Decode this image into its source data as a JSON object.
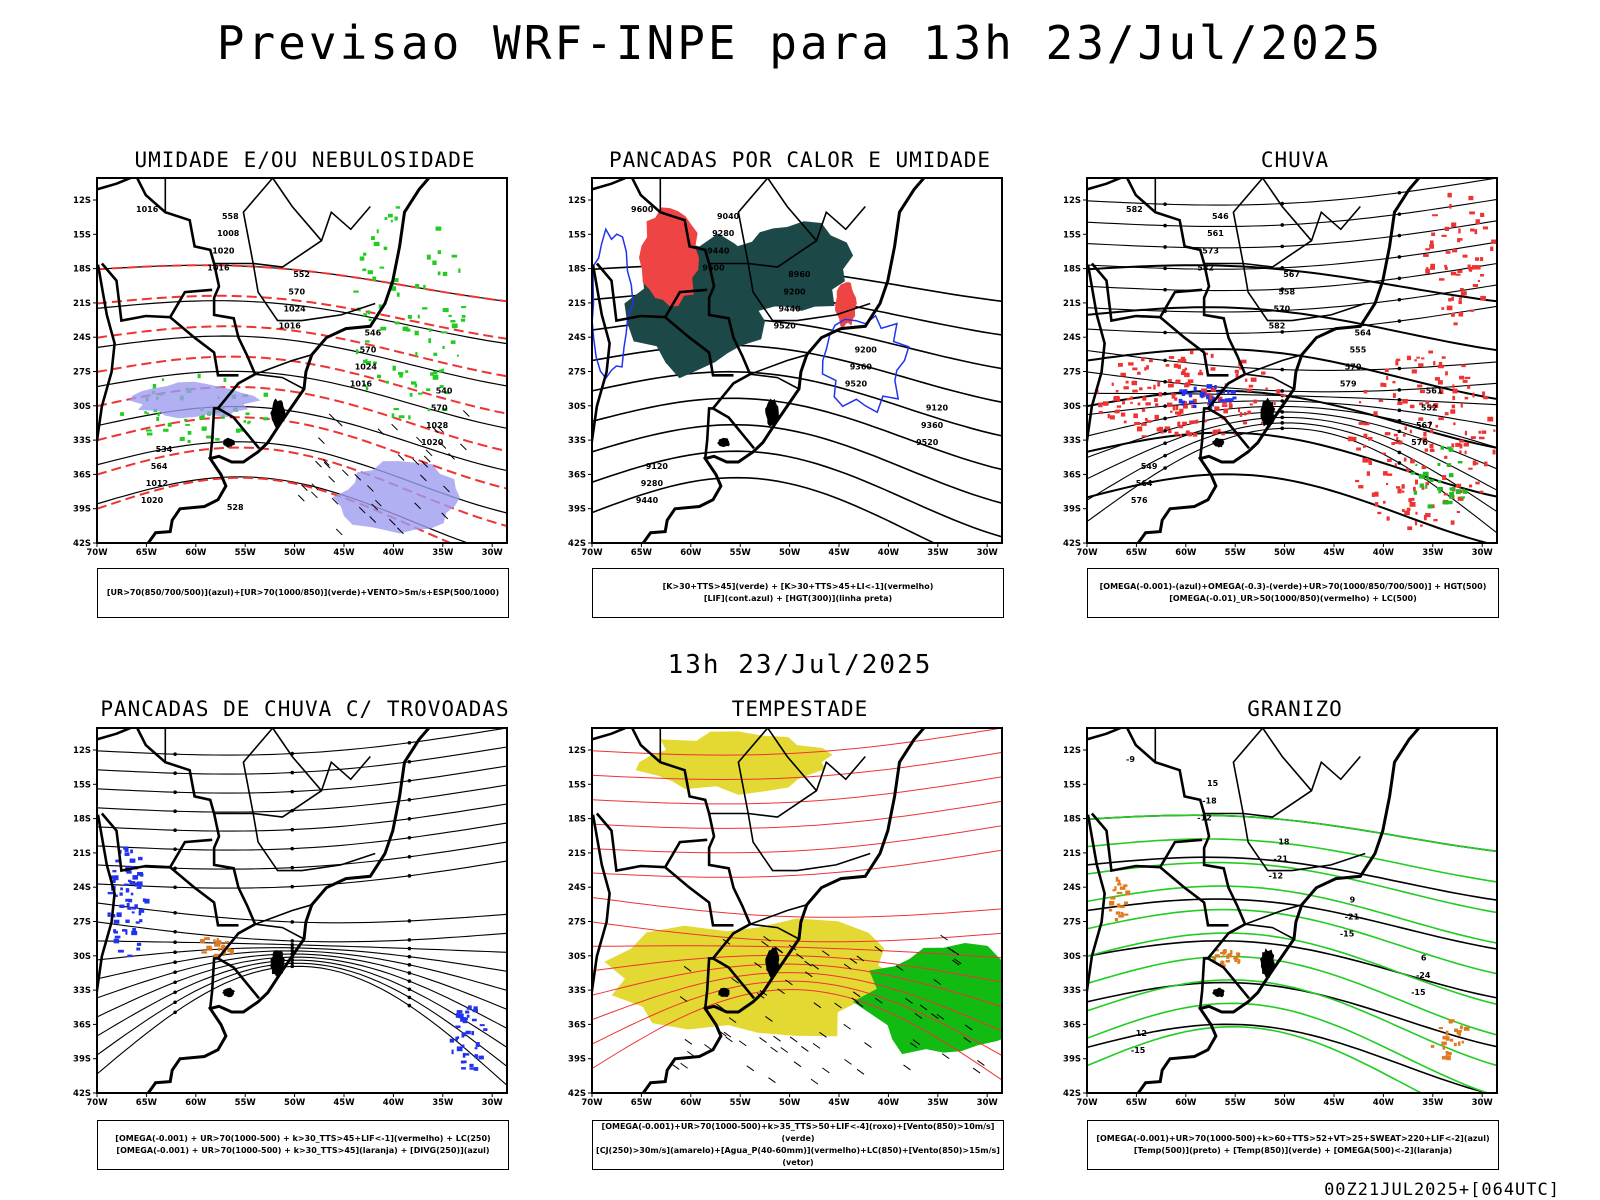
{
  "header": {
    "title": "Previsao WRF-INPE  para 13h 23/Jul/2025",
    "subtitle": "13h 23/Jul/2025",
    "run_info": "00Z21JUL2025+[064UTC]"
  },
  "axes": {
    "lat_labels": [
      "12S",
      "15S",
      "18S",
      "21S",
      "24S",
      "27S",
      "30S",
      "33S",
      "36S",
      "39S",
      "42S"
    ],
    "lon_labels": [
      "70W",
      "65W",
      "60W",
      "55W",
      "50W",
      "45W",
      "40W",
      "35W",
      "30W"
    ]
  },
  "panels": [
    {
      "id": "umidade",
      "title": "UMIDADE E/OU NEBULOSIDADE",
      "legend": [
        "[UR>70(850/700/500)](azul)+[UR>70(1000/850)](verde)+VENTO>5m/s+ESP(500/1000)"
      ],
      "contour_labels": [
        "1016",
        "1016",
        "1016",
        "1016",
        "1020",
        "1020",
        "1020",
        "1024",
        "1024",
        "1028",
        "1012",
        "1008",
        "570",
        "570",
        "570",
        "564",
        "558",
        "552",
        "546",
        "540",
        "534",
        "528"
      ]
    },
    {
      "id": "calor",
      "title": "PANCADAS POR CALOR E UMIDADE",
      "legend": [
        "[K>30+TTS>45](verde) + [K>30+TTS>45+LI<-1](vermelho)",
        "[LIF](cont.azul) + [HGT(300)](linha preta)"
      ],
      "contour_labels": [
        "9600",
        "9600",
        "9520",
        "9520",
        "9520",
        "9440",
        "9440",
        "9440",
        "9360",
        "9360",
        "9280",
        "9280",
        "9200",
        "9200",
        "9120",
        "9120",
        "9040",
        "8960"
      ]
    },
    {
      "id": "chuva",
      "title": "CHUVA",
      "legend": [
        "[OMEGA(-0.001)-(azul)+OMEGA(-0.3)-(verde)+UR>70(1000/850/700/500)] + HGT(500)",
        "[OMEGA(-0.01)_UR>50(1000/850)(vermelho) + LC(500)"
      ],
      "contour_labels": [
        "582",
        "582",
        "582",
        "579",
        "576",
        "576",
        "573",
        "570",
        "570",
        "567",
        "564",
        "561",
        "558",
        "555",
        "552",
        "549",
        "546",
        "567",
        "564",
        "561"
      ]
    },
    {
      "id": "trovoadas",
      "title": "PANCADAS DE CHUVA C/ TROVOADAS",
      "legend": [
        "[OMEGA(-0.001) + UR>70(1000-500) + k>30_TTS>45+LIF<-1](vermelho) + LC(250)",
        "[OMEGA(-0.001) + UR>70(1000-500) + k>30_TTS>45](laranja) + [DIVG(250)](azul)"
      ],
      "contour_labels": []
    },
    {
      "id": "tempestade",
      "title": "TEMPESTADE",
      "legend": [
        "[OMEGA(-0.001)+UR>70(1000-500)+k>35_TTS>50+LIF<-4](roxo)+[Vento(850)>10m/s](verde)",
        "[CJ(250)>30m/s](amarelo)+[Agua_P(40-60mm)](vermelho)+LC(850)+[Vento(850)>15m/s](vetor)"
      ],
      "contour_labels": []
    },
    {
      "id": "granizo",
      "title": "GRANIZO",
      "legend": [
        "[OMEGA(-0.001)+UR>70(1000-500)+k>60+TTS>52+VT>25+SWEAT>220+LIF<-2](azul)",
        "[Temp(500)](preto) + [Temp(850)](verde) + [OMEGA(500)<-2](laranja)"
      ],
      "contour_labels": [
        "-9",
        "-12",
        "-12",
        "-15",
        "-15",
        "-15",
        "-18",
        "-21",
        "-21",
        "-24",
        "12",
        "15",
        "18",
        "9",
        "6"
      ]
    }
  ],
  "colors": {
    "rh_upper": "#9c9cf0",
    "rh_lower": "#22cc22",
    "thickness": "#ee3333",
    "heat_green": "#1c4848",
    "heat_red": "#ee4444",
    "lif": "#2233ee",
    "rain_red": "#ee3333",
    "rain_blue": "#2233ee",
    "rain_green": "#22bb22",
    "storm_jet": "#e3d932",
    "storm_wind": "#11bb11",
    "storm_lc": "#ee3333",
    "hail_orange": "#e07a20",
    "hail_blue": "#2244ee",
    "temp850": "#22cc22"
  }
}
